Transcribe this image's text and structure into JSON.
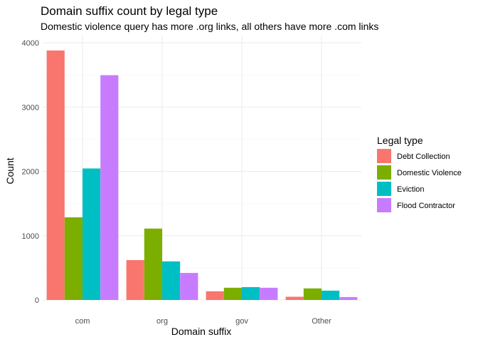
{
  "chart_data": {
    "type": "bar",
    "title": "Domain suffix count by legal type",
    "subtitle": "Domestic violence query has more .org links, all others have more .com links",
    "xlabel": "Domain suffix",
    "ylabel": "Count",
    "categories": [
      "com",
      "org",
      "gov",
      "Other"
    ],
    "series": [
      {
        "name": "Debt Collection",
        "color": "#F8766D",
        "values": [
          3880,
          620,
          135,
          50
        ]
      },
      {
        "name": "Domestic Violence",
        "color": "#7CAE00",
        "values": [
          1285,
          1110,
          190,
          180
        ]
      },
      {
        "name": "Eviction",
        "color": "#00BFC4",
        "values": [
          2045,
          600,
          200,
          145
        ]
      },
      {
        "name": "Flood Contractor",
        "color": "#C77CFF",
        "values": [
          3495,
          420,
          190,
          45
        ]
      }
    ],
    "ylim": [
      0,
      4000
    ],
    "yticks": [
      0,
      1000,
      2000,
      3000,
      4000
    ],
    "grid": true,
    "legend": {
      "title": "Legal type",
      "position": "right"
    }
  }
}
